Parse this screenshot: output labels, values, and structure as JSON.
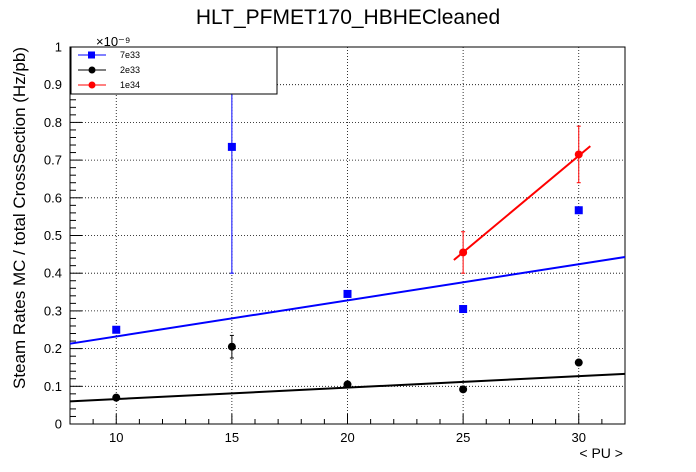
{
  "chart_data": {
    "type": "scatter",
    "title": "HLT_PFMET170_HBHECleaned",
    "xlabel": "< PU >",
    "ylabel": "Steam Rates MC / total CrossSection (Hz/pb)",
    "y_exponent": "×10⁻⁹",
    "xlim": [
      8,
      32
    ],
    "ylim": [
      0,
      1.0
    ],
    "x_ticks": [
      10,
      15,
      20,
      25,
      30
    ],
    "y_ticks": [
      0,
      0.1,
      0.2,
      0.3,
      0.4,
      0.5,
      0.6,
      0.7,
      0.8,
      0.9,
      1
    ],
    "y_tick_labels": [
      "0",
      "0.1",
      "0.2",
      "0.3",
      "0.4",
      "0.5",
      "0.6",
      "0.7",
      "0.8",
      "0.9",
      "1"
    ],
    "grid": true,
    "legend_position": "top-left",
    "series": [
      {
        "name": "7e33",
        "color": "#0000ff",
        "marker": "square",
        "points": [
          {
            "x": 10,
            "y": 0.25,
            "err": 0.0
          },
          {
            "x": 15,
            "y": 0.735,
            "err": 0.335
          },
          {
            "x": 20,
            "y": 0.345,
            "err": 0.0
          },
          {
            "x": 25,
            "y": 0.305,
            "err": 0.0
          },
          {
            "x": 30,
            "y": 0.567,
            "err": 0.0
          }
        ],
        "fit": {
          "x": [
            8,
            32
          ],
          "y": [
            0.213,
            0.443
          ]
        }
      },
      {
        "name": "2e33",
        "color": "#000000",
        "marker": "circle",
        "points": [
          {
            "x": 10,
            "y": 0.07,
            "err": 0.0
          },
          {
            "x": 15,
            "y": 0.205,
            "err": 0.03
          },
          {
            "x": 20,
            "y": 0.105,
            "err": 0.0
          },
          {
            "x": 25,
            "y": 0.092,
            "err": 0.0
          },
          {
            "x": 30,
            "y": 0.163,
            "err": 0.0
          }
        ],
        "fit": {
          "x": [
            8,
            32
          ],
          "y": [
            0.06,
            0.133
          ]
        }
      },
      {
        "name": "1e34",
        "color": "#ff0000",
        "marker": "circle",
        "points": [
          {
            "x": 25,
            "y": 0.455,
            "err": 0.055
          },
          {
            "x": 30,
            "y": 0.715,
            "err": 0.075
          }
        ],
        "fit": {
          "x": [
            24.6,
            30.5
          ],
          "y": [
            0.435,
            0.737
          ]
        }
      }
    ]
  }
}
